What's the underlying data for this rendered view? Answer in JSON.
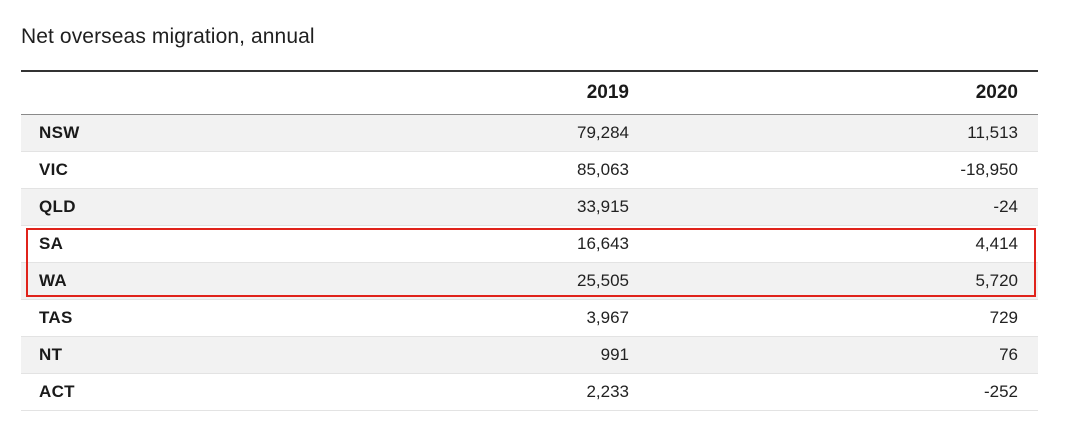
{
  "chart_data": {
    "type": "table",
    "title": "Net overseas migration, annual",
    "columns": [
      "",
      "2019",
      "2020"
    ],
    "rows": [
      {
        "region": "NSW",
        "y2019": "79,284",
        "y2020": "11,513"
      },
      {
        "region": "VIC",
        "y2019": "85,063",
        "y2020": "-18,950"
      },
      {
        "region": "QLD",
        "y2019": "33,915",
        "y2020": "-24"
      },
      {
        "region": "SA",
        "y2019": "16,643",
        "y2020": "4,414"
      },
      {
        "region": "WA",
        "y2019": "25,505",
        "y2020": "5,720"
      },
      {
        "region": "TAS",
        "y2019": "3,967",
        "y2020": "729"
      },
      {
        "region": "NT",
        "y2019": "991",
        "y2020": "76"
      },
      {
        "region": "ACT",
        "y2019": "2,233",
        "y2020": "-252"
      }
    ],
    "highlighted_rows": [
      "SA",
      "WA"
    ],
    "highlight_color": "#e0231b"
  }
}
